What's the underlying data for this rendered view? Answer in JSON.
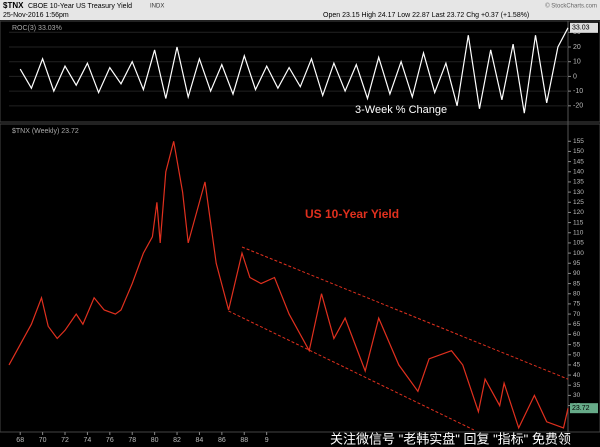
{
  "header": {
    "symbol": "$TNX",
    "name": "CBOE 10-Year US Treasury Yield",
    "exchange": "INDX",
    "date": "25-Nov-2016 1:56pm",
    "quote": "Open 23.15 High 24.17 Low 22.87 Last 23.72 Chg +0.37 (+1.58%)",
    "credit": "© StockCharts.com"
  },
  "watermark": "关注微信号 \"老韩实盘\" 回复 \"指标\" 免费领",
  "chart_data": [
    {
      "type": "line",
      "legend": "ROC(3) 33.03%",
      "annotation": "3-Week % Change",
      "color": "#ffffff",
      "x": [
        1968,
        1969,
        1970,
        1971,
        1972,
        1973,
        1974,
        1975,
        1976,
        1977,
        1978,
        1979,
        1980,
        1981,
        1982,
        1983,
        1984,
        1985,
        1986,
        1987,
        1988,
        1989,
        1990,
        1991,
        1992,
        1993,
        1994,
        1995,
        1996,
        1997,
        1998,
        1999,
        2000,
        2001,
        2002,
        2003,
        2004,
        2005,
        2006,
        2007,
        2008,
        2009,
        2010,
        2011,
        2012,
        2013,
        2014,
        2015,
        2016,
        2016.9
      ],
      "values": [
        5,
        -8,
        12,
        -10,
        7,
        -6,
        9,
        -11,
        6,
        -5,
        10,
        -9,
        18,
        -15,
        20,
        -14,
        12,
        -10,
        8,
        -12,
        14,
        -9,
        7,
        -8,
        6,
        -7,
        12,
        -13,
        9,
        -10,
        8,
        -15,
        13,
        -12,
        10,
        -14,
        16,
        -11,
        9,
        -20,
        28,
        -22,
        18,
        -16,
        22,
        -25,
        28,
        -18,
        20,
        33.03
      ],
      "xlim": [
        1967,
        2016.9
      ],
      "ylim": [
        -31,
        37
      ],
      "yticks": [
        30,
        20,
        10,
        0,
        -10,
        -20
      ]
    },
    {
      "type": "line",
      "legend": "$TNX (Weekly) 23.72",
      "annotation": "US 10-Year Yield",
      "color": "#e0301e",
      "x": [
        1967,
        1968,
        1969,
        1969.9,
        1970.5,
        1971.3,
        1972,
        1973,
        1973.6,
        1974.6,
        1975.5,
        1976.5,
        1977,
        1978,
        1979,
        1979.8,
        1980.2,
        1980.5,
        1981,
        1981.7,
        1982.5,
        1983,
        1984.5,
        1985.5,
        1986.6,
        1987.8,
        1988.5,
        1989.5,
        1990.7,
        1992,
        1993.8,
        1994.9,
        1996,
        1997,
        1998.8,
        2000,
        2001.8,
        2003.5,
        2004.5,
        2006.5,
        2007.5,
        2008.9,
        2009.5,
        2010.8,
        2011.2,
        2012.5,
        2013.9,
        2015,
        2016.5,
        2016.9
      ],
      "values": [
        45,
        55,
        65,
        78,
        64,
        58,
        62,
        70,
        65,
        78,
        72,
        70,
        72,
        85,
        100,
        108,
        125,
        105,
        140,
        155,
        130,
        105,
        135,
        95,
        72,
        100,
        88,
        85,
        88,
        70,
        52,
        80,
        58,
        68,
        42,
        68,
        45,
        32,
        48,
        52,
        45,
        22,
        38,
        25,
        36,
        14,
        30,
        17,
        14,
        23.72
      ],
      "channel": [
        {
          "x": [
            1987.8,
            2016.9
          ],
          "values": [
            103,
            38
          ]
        },
        {
          "x": [
            1986.6,
            2008.5
          ],
          "values": [
            71.5,
            13
          ]
        }
      ],
      "xlim": [
        1967,
        2016.9
      ],
      "ylim": [
        12,
        163
      ],
      "yticks": [
        155,
        150,
        145,
        140,
        135,
        130,
        125,
        120,
        115,
        110,
        105,
        100,
        95,
        90,
        85,
        80,
        75,
        70,
        65,
        60,
        55,
        50,
        45,
        40,
        35,
        30,
        25
      ],
      "xticks": [
        {
          "value": 1968,
          "label": "68"
        },
        {
          "value": 1970,
          "label": "70"
        },
        {
          "value": 1972,
          "label": "72"
        },
        {
          "value": 1974,
          "label": "74"
        },
        {
          "value": 1976,
          "label": "76"
        },
        {
          "value": 1978,
          "label": "78"
        },
        {
          "value": 1980,
          "label": "80"
        },
        {
          "value": 1982,
          "label": "82"
        },
        {
          "value": 1984,
          "label": "84"
        },
        {
          "value": 1986,
          "label": "86"
        },
        {
          "value": 1988,
          "label": "88"
        },
        {
          "value": 1990,
          "label": "9"
        }
      ]
    }
  ]
}
